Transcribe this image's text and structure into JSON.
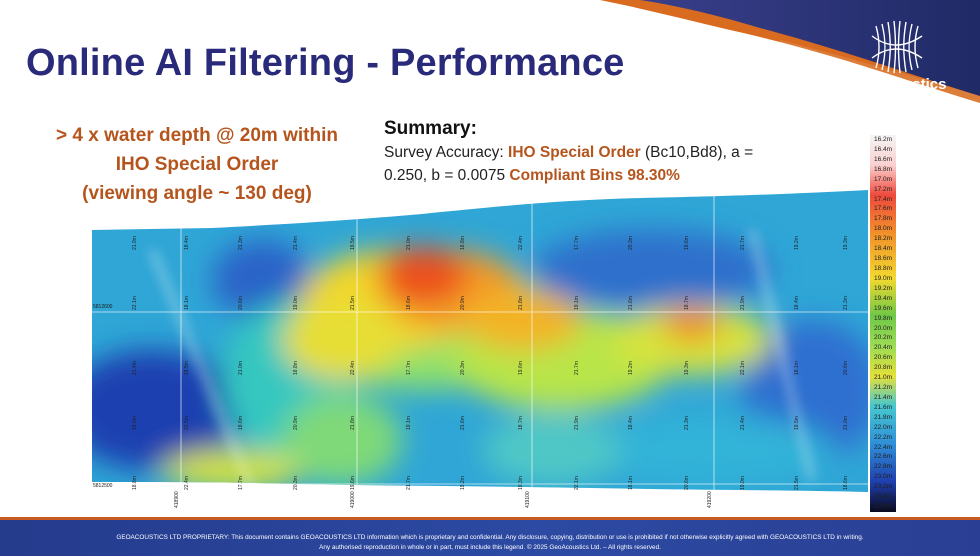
{
  "slide": {
    "title": "Online AI Filtering - Performance",
    "left_note": [
      "> 4 x water depth @ 20m within",
      "IHO Special Order",
      "(viewing angle ~ 130 deg)"
    ],
    "summary": {
      "heading": "Summary:",
      "prefix": "Survey Accuracy: ",
      "order": "IHO Special Order",
      "params_1": " (Bc10,Bd8), a =",
      "params_2": "0.250, b = 0.0075  ",
      "compliance": "Compliant Bins 98.30%"
    },
    "brand": {
      "name": "GeoAcoustics"
    },
    "map": {
      "grid_y_label": "5812600",
      "grid_y_label_bottom": "5812500",
      "grid_x_labels": [
        "418900",
        "419000",
        "419100",
        "419200"
      ],
      "depth_label_samples": [
        "21.9m",
        "21.5m",
        "21.7m",
        "19.5m",
        "19.1m",
        "18.1m",
        "17.7m",
        "18.4m",
        "18.6m",
        "19.2m",
        "21.0m",
        "21.6m",
        "20.6m",
        "20.3m",
        "21.3m",
        "20.9m",
        "19.3m",
        "18.8m",
        "18.7m",
        "19.0m",
        "19.6m",
        "21.4m",
        "21.8m",
        "22.1m",
        "22.4m"
      ]
    },
    "colorbar": {
      "labels": [
        "16.2m",
        "16.4m",
        "16.6m",
        "16.8m",
        "17.0m",
        "17.2m",
        "17.4m",
        "17.6m",
        "17.8m",
        "18.0m",
        "18.2m",
        "18.4m",
        "18.6m",
        "18.8m",
        "19.0m",
        "19.2m",
        "19.4m",
        "19.6m",
        "19.8m",
        "20.0m",
        "20.2m",
        "20.4m",
        "20.6m",
        "20.8m",
        "21.0m",
        "21.2m",
        "21.4m",
        "21.6m",
        "21.8m",
        "22.0m",
        "22.2m",
        "22.4m",
        "22.6m",
        "22.8m",
        "23.0m",
        "23.2m",
        "23.4m",
        "23.6m"
      ]
    },
    "footer": {
      "line1": "GEOACOUSTICS LTD PROPRIETARY: This document contains GEOACOUSTICS LTD information which is proprietary and confidential. Any disclosure, copying, distribution or use is prohibited if not otherwise explicitly agreed with GEOACOUSTICS LTD in writing.",
      "line2": "Any authorised reproduction in whole or in part, must include this legend.  © 2025 GeoAcoustics Ltd. – All rights reserved."
    },
    "colors": {
      "title": "#2a2a7a",
      "accent": "#b5551d",
      "banner_dark": "#25306e",
      "banner_orange": "#d86b1f",
      "footer": "#2c4aa3"
    }
  }
}
